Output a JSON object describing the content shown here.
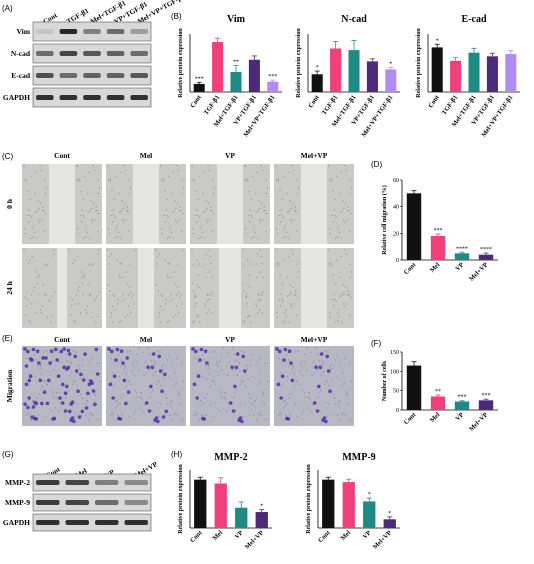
{
  "figure": {
    "panels": {
      "A": {
        "letter": "(A)",
        "lanes": [
          "Cont",
          "TGF-β1",
          "Mel+TGF-β1",
          "VP+TGF-β1",
          "Mel+VP+TGF-β1"
        ],
        "rows": [
          "Vim",
          "N-cad",
          "E-cad",
          "GAPDH"
        ]
      },
      "B": {
        "letter": "(B)"
      },
      "C": {
        "letter": "(C)",
        "cols": [
          "Cont",
          "Mel",
          "VP",
          "Mel+VP"
        ],
        "rows": [
          "0 h",
          "24 h"
        ]
      },
      "D": {
        "letter": "(D)"
      },
      "E": {
        "letter": "(E)",
        "cols": [
          "Cont",
          "Mel",
          "VP",
          "Mel+VP"
        ],
        "row_label": "Migration"
      },
      "F": {
        "letter": "(F)"
      },
      "G": {
        "letter": "(G)",
        "lanes": [
          "Cont",
          "Mel",
          "VP",
          "Mel+VP"
        ],
        "rows": [
          "MMP-2",
          "MMP-9",
          "GAPDH"
        ]
      },
      "H": {
        "letter": "(H)"
      }
    }
  },
  "chart_data": [
    {
      "id": "B-vim",
      "type": "bar",
      "title": "Vim",
      "ylabel": "Relative protein expression",
      "categories": [
        "Cont",
        "TGF-β1",
        "Mel+TGF-β1",
        "VP+TGF-β1",
        "Mel+VP+TGF-β1"
      ],
      "values": [
        0.25,
        1.55,
        0.62,
        1.0,
        0.32
      ],
      "errors": [
        0.05,
        0.12,
        0.2,
        0.12,
        0.05
      ],
      "annotations": [
        "***",
        "",
        "**",
        "",
        "***"
      ],
      "colors": [
        "#111111",
        "#f0407a",
        "#1d8a83",
        "#4b2a7a",
        "#b08cf0"
      ]
    },
    {
      "id": "B-ncad",
      "type": "bar",
      "title": "N-cad",
      "ylabel": "Relative protein expression",
      "categories": [
        "Cont",
        "TGF-β1",
        "Mel+TGF-β1",
        "VP+TGF-β1",
        "Mel+VP+TGF-β1"
      ],
      "values": [
        0.55,
        1.35,
        1.3,
        0.95,
        0.7
      ],
      "errors": [
        0.1,
        0.22,
        0.3,
        0.08,
        0.06
      ],
      "annotations": [
        "*",
        "",
        "",
        "",
        "*"
      ],
      "colors": [
        "#111111",
        "#f0407a",
        "#1d8a83",
        "#4b2a7a",
        "#b08cf0"
      ]
    },
    {
      "id": "B-ecad",
      "type": "bar",
      "title": "E-cad",
      "ylabel": "Relative protein expression",
      "categories": [
        "Cont",
        "TGF-β1",
        "Mel+TGF-β1",
        "VP+TGF-β1",
        "Mel+VP+TGF-β1"
      ],
      "values": [
        1.0,
        0.7,
        0.88,
        0.8,
        0.85
      ],
      "errors": [
        0.07,
        0.07,
        0.1,
        0.07,
        0.08
      ],
      "annotations": [
        "*",
        "",
        "",
        "",
        ""
      ],
      "colors": [
        "#111111",
        "#f0407a",
        "#1d8a83",
        "#4b2a7a",
        "#b08cf0"
      ]
    },
    {
      "id": "D",
      "type": "bar",
      "ylabel": "Relative cell migration (%)",
      "categories": [
        "Cont",
        "Mel",
        "VP",
        "Mel+VP"
      ],
      "values": [
        50,
        18,
        5,
        4
      ],
      "errors": [
        2,
        1.5,
        0.8,
        1.2
      ],
      "ylim": [
        0,
        60
      ],
      "yticks": [
        0,
        20,
        40,
        60
      ],
      "annotations": [
        "",
        "***",
        "****",
        "****"
      ],
      "colors": [
        "#111111",
        "#f0407a",
        "#1d8a83",
        "#4b2a7a"
      ]
    },
    {
      "id": "F",
      "type": "bar",
      "ylabel": "Number of cells",
      "categories": [
        "Cont",
        "Mel",
        "VP",
        "Mel+VP"
      ],
      "values": [
        115,
        35,
        22,
        25
      ],
      "errors": [
        10,
        4,
        2,
        3
      ],
      "ylim": [
        0,
        150
      ],
      "yticks": [
        0,
        50,
        100,
        150
      ],
      "annotations": [
        "",
        "**",
        "***",
        "***"
      ],
      "colors": [
        "#111111",
        "#f0407a",
        "#1d8a83",
        "#4b2a7a"
      ]
    },
    {
      "id": "H-mmp2",
      "type": "bar",
      "title": "MMP-2",
      "ylabel": "Relative protein expression",
      "categories": [
        "Cont",
        "Mel",
        "VP",
        "Mel+VP"
      ],
      "values": [
        1.0,
        0.92,
        0.42,
        0.33
      ],
      "errors": [
        0.05,
        0.12,
        0.12,
        0.05
      ],
      "annotations": [
        "",
        "",
        "",
        "*"
      ],
      "colors": [
        "#111111",
        "#f0407a",
        "#1d8a83",
        "#4b2a7a"
      ]
    },
    {
      "id": "H-mmp9",
      "type": "bar",
      "title": "MMP-9",
      "ylabel": "Relative protein expression",
      "categories": [
        "Cont",
        "Mel",
        "VP",
        "Mel+VP"
      ],
      "values": [
        1.0,
        0.95,
        0.55,
        0.18
      ],
      "errors": [
        0.05,
        0.06,
        0.07,
        0.05
      ],
      "annotations": [
        "",
        "",
        "*",
        "*"
      ],
      "colors": [
        "#111111",
        "#f0407a",
        "#1d8a83",
        "#4b2a7a"
      ]
    }
  ]
}
